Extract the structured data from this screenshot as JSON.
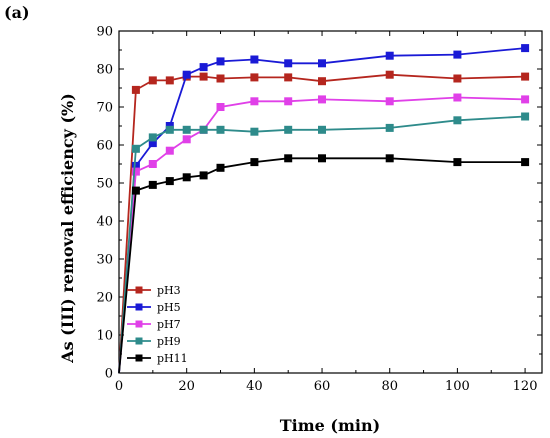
{
  "chart_data": {
    "type": "line",
    "panel_label": "(a)",
    "xlabel": "Time (min)",
    "ylabel": "As (III) removal efficiency (%)",
    "xlim": [
      0,
      125
    ],
    "ylim": [
      0,
      90
    ],
    "xticks": [
      0,
      20,
      40,
      60,
      80,
      100,
      120
    ],
    "yticks": [
      0,
      10,
      20,
      30,
      40,
      50,
      60,
      70,
      80,
      90
    ],
    "x": [
      0,
      5,
      10,
      15,
      20,
      25,
      30,
      40,
      50,
      60,
      80,
      100,
      120
    ],
    "series": [
      {
        "name": "pH3",
        "color": "#b5261e",
        "values": [
          0,
          74.5,
          77,
          77,
          78,
          78,
          77.5,
          77.8,
          77.8,
          76.8,
          78.5,
          77.5,
          78
        ]
      },
      {
        "name": "pH5",
        "color": "#1a1ad6",
        "values": [
          0,
          54.5,
          60.5,
          65,
          78.5,
          80.5,
          82,
          82.5,
          81.5,
          81.5,
          83.5,
          83.8,
          85.5
        ]
      },
      {
        "name": "pH7",
        "color": "#e040e8",
        "values": [
          0,
          53,
          55,
          58.5,
          61.5,
          64,
          70,
          71.5,
          71.5,
          72,
          71.5,
          72.5,
          72
        ]
      },
      {
        "name": "pH9",
        "color": "#2e8b8b",
        "values": [
          0,
          59,
          62,
          64,
          64,
          64,
          64,
          63.5,
          64,
          64,
          64.5,
          66.5,
          67.5
        ]
      },
      {
        "name": "pH11",
        "color": "#000000",
        "values": [
          0,
          48,
          49.5,
          50.5,
          51.5,
          52,
          54,
          55.5,
          56.5,
          56.5,
          56.5,
          55.5,
          55.5
        ]
      }
    ],
    "legend": "lower-left",
    "grid": false
  }
}
